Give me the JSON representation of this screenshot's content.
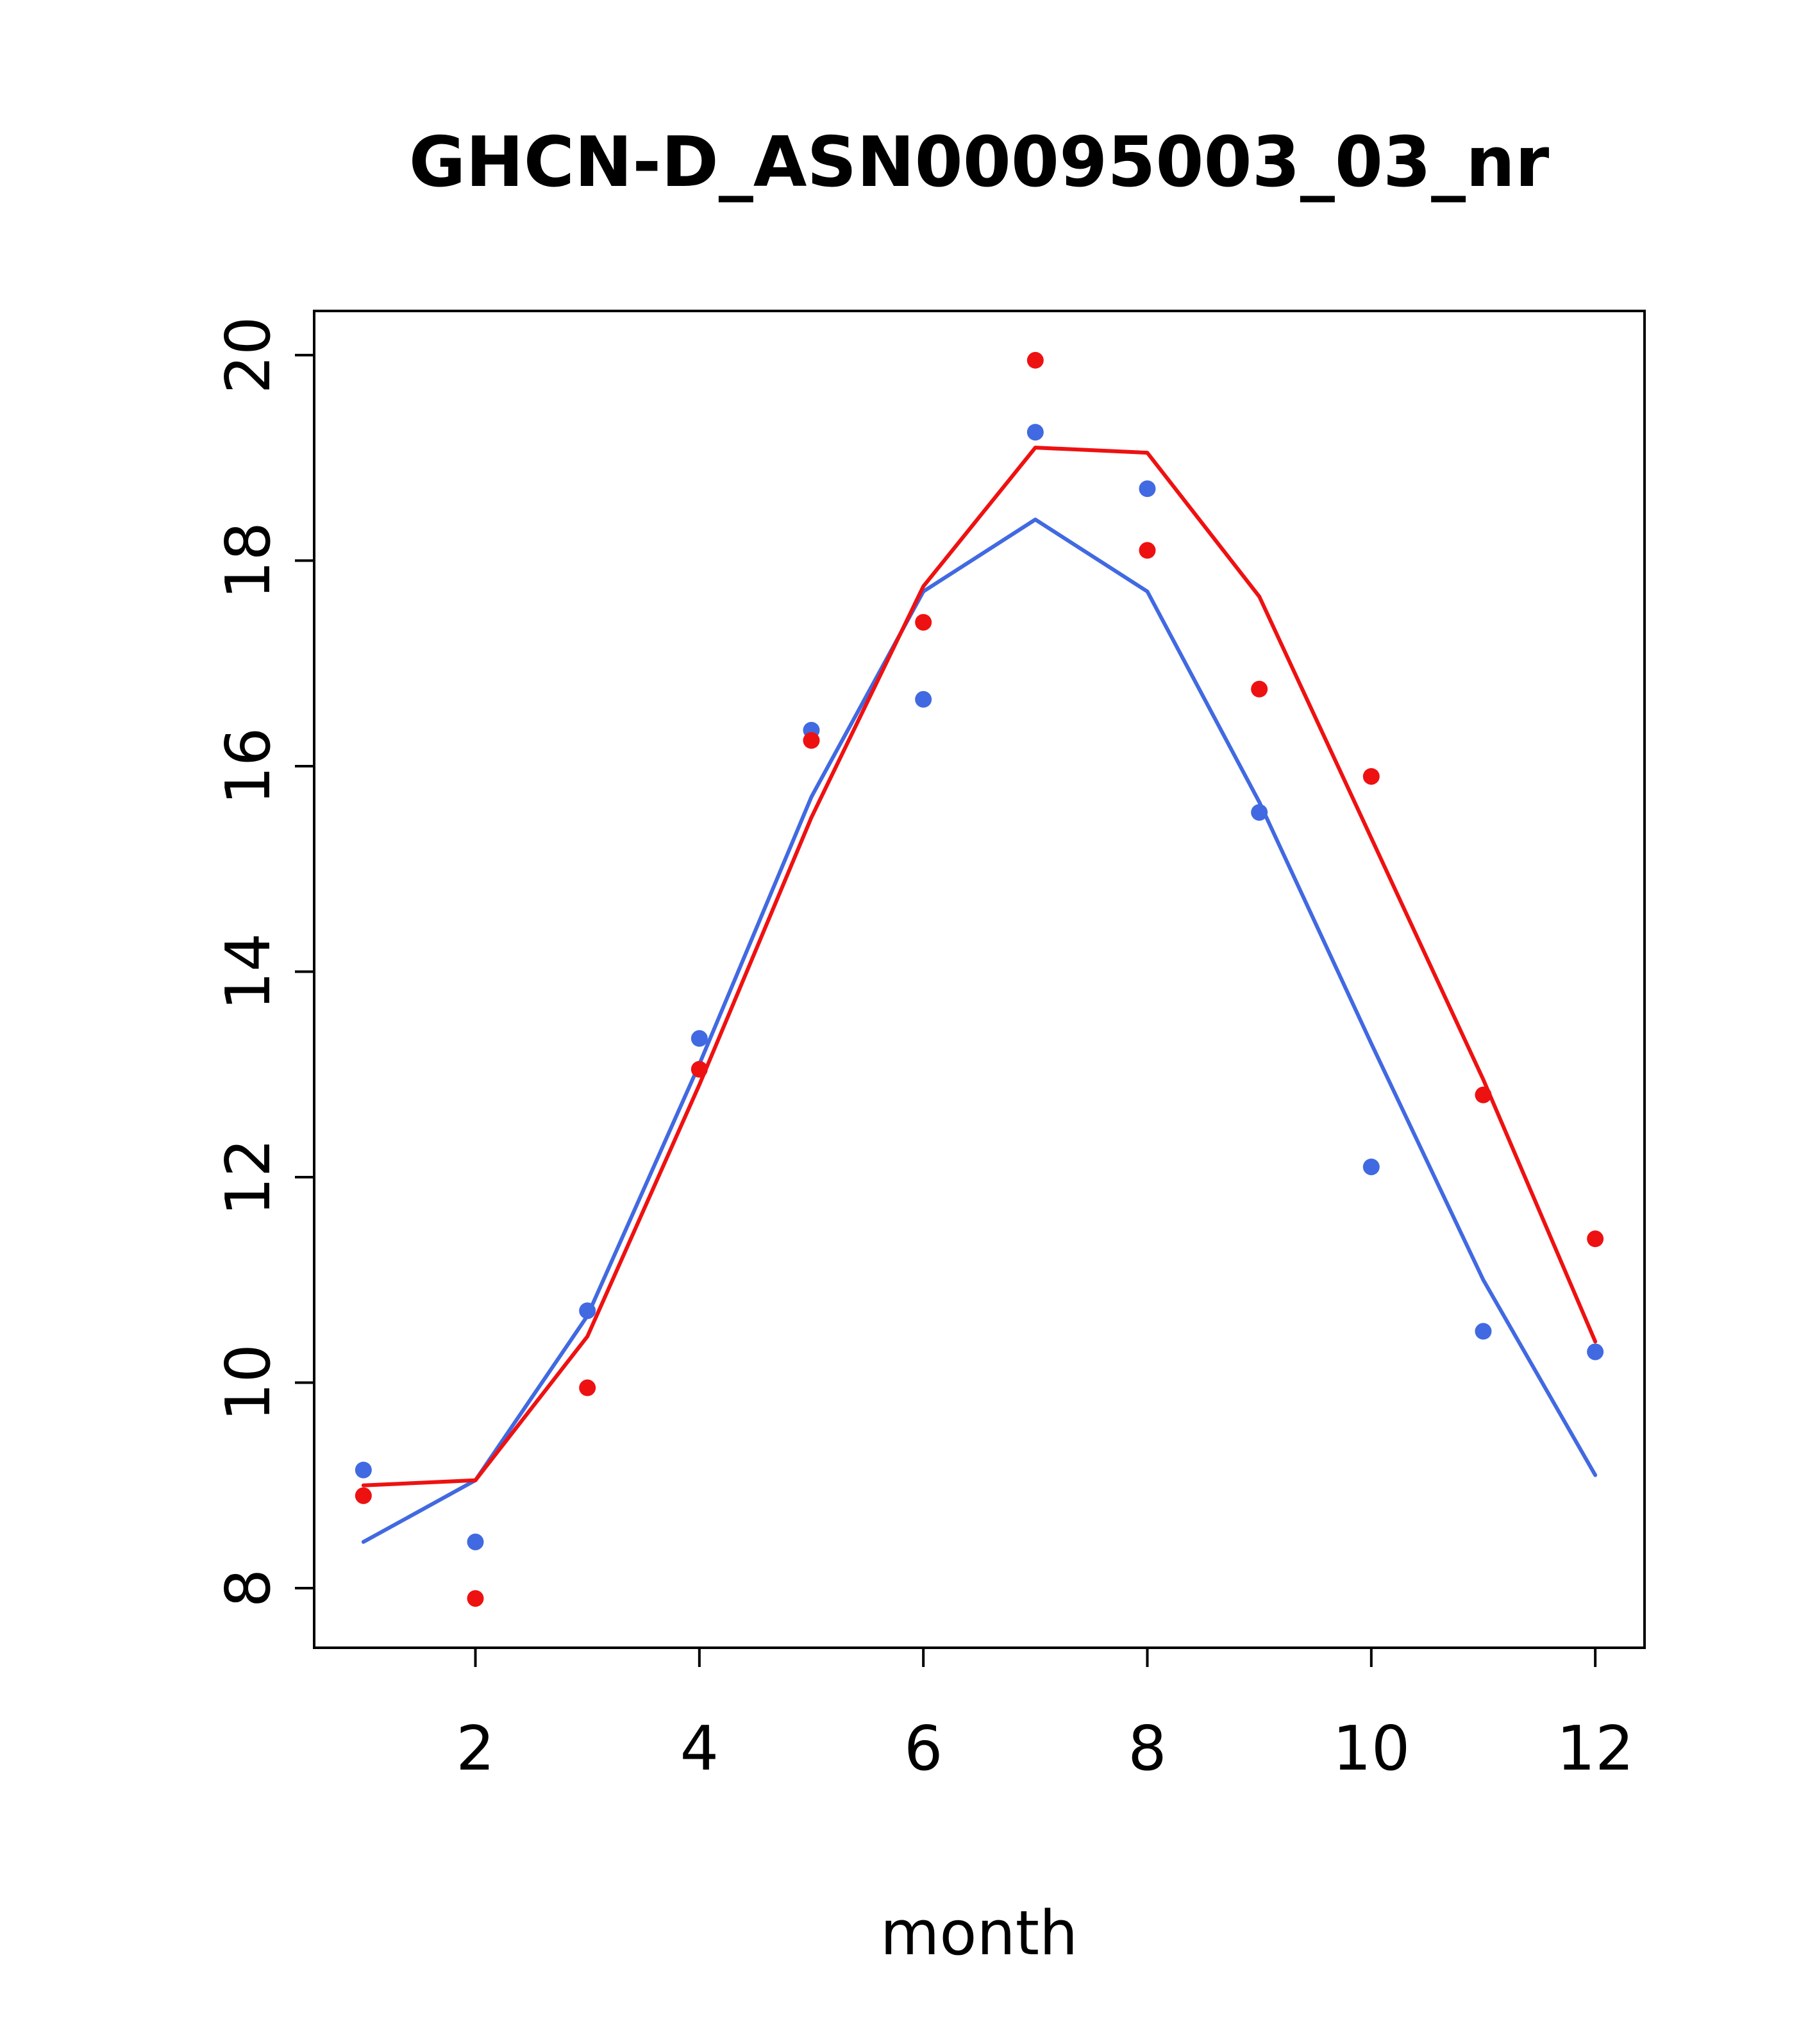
{
  "figure": {
    "background": "#ffffff"
  },
  "chart_data": {
    "type": "scatter",
    "title": "GHCN-D_ASN00095003_03_nr",
    "xlabel": "month",
    "ylabel": "",
    "xlim": [
      0.56,
      12.44
    ],
    "ylim": [
      7.42,
      20.43
    ],
    "x_ticks": [
      2,
      4,
      6,
      8,
      10,
      12
    ],
    "y_ticks": [
      8,
      10,
      12,
      14,
      16,
      18,
      20
    ],
    "x": [
      1,
      2,
      3,
      4,
      5,
      6,
      7,
      8,
      9,
      10,
      11,
      12
    ],
    "grid": false,
    "legend": "none",
    "colors": {
      "blue": "#4169e1",
      "red": "#ee1111",
      "axis": "#000000"
    },
    "series": [
      {
        "name": "blue-line",
        "kind": "line",
        "color": "#4169e1",
        "values": [
          8.45,
          9.05,
          10.65,
          13.1,
          15.7,
          17.7,
          18.4,
          17.7,
          15.65,
          13.3,
          11.0,
          9.1
        ]
      },
      {
        "name": "red-line",
        "kind": "line",
        "color": "#ee1111",
        "values": [
          9.0,
          9.05,
          10.45,
          12.9,
          15.5,
          17.75,
          19.1,
          19.05,
          17.65,
          15.3,
          12.95,
          10.4
        ]
      },
      {
        "name": "blue-points",
        "kind": "points",
        "color": "#4169e1",
        "values": [
          9.15,
          8.45,
          10.7,
          13.35,
          16.35,
          16.65,
          19.25,
          18.7,
          15.55,
          12.1,
          10.5,
          10.3
        ]
      },
      {
        "name": "red-points",
        "kind": "points",
        "color": "#ee1111",
        "values": [
          8.9,
          7.9,
          9.95,
          13.05,
          16.25,
          17.4,
          19.95,
          18.1,
          16.75,
          15.9,
          12.8,
          11.4
        ]
      }
    ]
  }
}
